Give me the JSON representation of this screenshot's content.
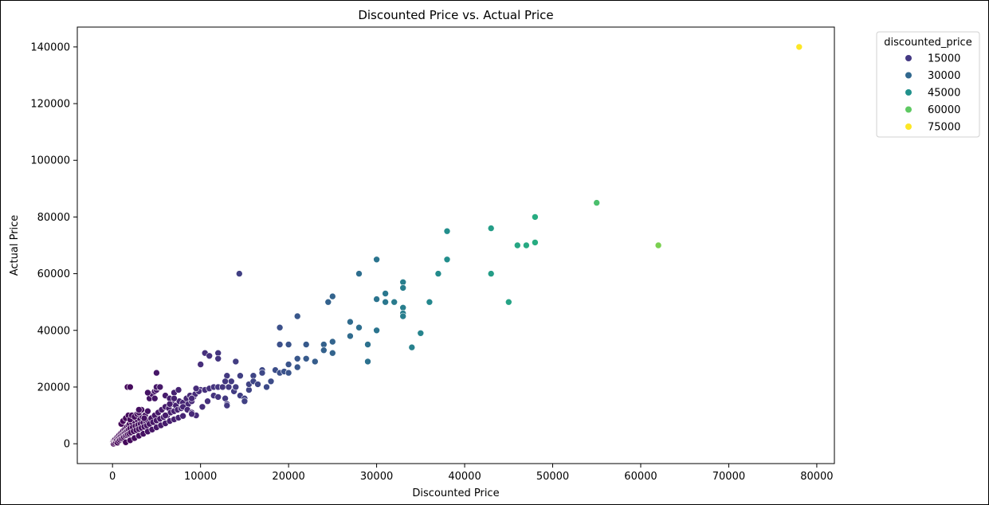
{
  "chart_data": {
    "type": "scatter",
    "title": "Discounted Price vs. Actual Price",
    "xlabel": "Discounted Price",
    "ylabel": "Actual Price",
    "xlim": [
      -4000,
      82000
    ],
    "ylim": [
      -7000,
      147000
    ],
    "x_ticks": [
      0,
      10000,
      20000,
      30000,
      40000,
      50000,
      60000,
      70000,
      80000
    ],
    "y_ticks": [
      0,
      20000,
      40000,
      60000,
      80000,
      100000,
      120000,
      140000
    ],
    "grid": false,
    "legend": {
      "title": "discounted_price",
      "placement": "outside-top-right",
      "entries": [
        {
          "label": "15000",
          "color": "#443983"
        },
        {
          "label": "30000",
          "color": "#31688e"
        },
        {
          "label": "45000",
          "color": "#21918c"
        },
        {
          "label": "60000",
          "color": "#5ec962"
        },
        {
          "label": "75000",
          "color": "#fde725"
        }
      ]
    },
    "colormap": "viridis",
    "color_range": [
      40,
      78000
    ],
    "points": [
      [
        40,
        500
      ],
      [
        80,
        200
      ],
      [
        120,
        0
      ],
      [
        150,
        1000
      ],
      [
        200,
        700
      ],
      [
        250,
        300
      ],
      [
        300,
        1500
      ],
      [
        350,
        900
      ],
      [
        400,
        600
      ],
      [
        450,
        2000
      ],
      [
        500,
        1200
      ],
      [
        550,
        400
      ],
      [
        600,
        2500
      ],
      [
        650,
        1800
      ],
      [
        700,
        1000
      ],
      [
        750,
        3000
      ],
      [
        800,
        2200
      ],
      [
        850,
        1400
      ],
      [
        900,
        3500
      ],
      [
        950,
        2600
      ],
      [
        1000,
        1800
      ],
      [
        1050,
        4000
      ],
      [
        1100,
        3000
      ],
      [
        1150,
        2000
      ],
      [
        1200,
        4500
      ],
      [
        1250,
        3400
      ],
      [
        1300,
        2400
      ],
      [
        1350,
        5000
      ],
      [
        1400,
        3800
      ],
      [
        1450,
        2800
      ],
      [
        1500,
        5500
      ],
      [
        1550,
        4200
      ],
      [
        1600,
        3000
      ],
      [
        1650,
        6000
      ],
      [
        1700,
        4600
      ],
      [
        1750,
        3300
      ],
      [
        1800,
        6500
      ],
      [
        1850,
        5000
      ],
      [
        1900,
        3600
      ],
      [
        1950,
        7000
      ],
      [
        2000,
        5400
      ],
      [
        2100,
        4000
      ],
      [
        2200,
        7500
      ],
      [
        2300,
        5800
      ],
      [
        2400,
        4400
      ],
      [
        2500,
        8000
      ],
      [
        2600,
        6200
      ],
      [
        2700,
        4800
      ],
      [
        2800,
        8500
      ],
      [
        2900,
        6600
      ],
      [
        3000,
        5200
      ],
      [
        3100,
        9000
      ],
      [
        3200,
        7000
      ],
      [
        3300,
        5600
      ],
      [
        3400,
        9500
      ],
      [
        3500,
        7400
      ],
      [
        3600,
        6000
      ],
      [
        3700,
        10000
      ],
      [
        3800,
        7800
      ],
      [
        3900,
        6400
      ],
      [
        4000,
        8200
      ],
      [
        4200,
        7000
      ],
      [
        4400,
        9000
      ],
      [
        4600,
        7600
      ],
      [
        4800,
        10000
      ],
      [
        5000,
        8200
      ],
      [
        5200,
        11000
      ],
      [
        5400,
        8800
      ],
      [
        5600,
        12000
      ],
      [
        5800,
        9400
      ],
      [
        6000,
        13000
      ],
      [
        6200,
        10000
      ],
      [
        6400,
        12500
      ],
      [
        6600,
        11000
      ],
      [
        6800,
        14000
      ],
      [
        7000,
        11500
      ],
      [
        7200,
        13500
      ],
      [
        7400,
        12000
      ],
      [
        7600,
        15000
      ],
      [
        7800,
        12500
      ],
      [
        8000,
        14500
      ],
      [
        8200,
        13000
      ],
      [
        8400,
        16000
      ],
      [
        8600,
        14000
      ],
      [
        8800,
        17000
      ],
      [
        9000,
        15000
      ],
      [
        9200,
        16500
      ],
      [
        9400,
        17500
      ],
      [
        1000,
        7000
      ],
      [
        1200,
        8000
      ],
      [
        1500,
        9000
      ],
      [
        1800,
        10000
      ],
      [
        2000,
        8500
      ],
      [
        2200,
        10000
      ],
      [
        2500,
        9500
      ],
      [
        2800,
        10500
      ],
      [
        3000,
        11000
      ],
      [
        3300,
        12000
      ],
      [
        3600,
        9000
      ],
      [
        4000,
        11500
      ],
      [
        4200,
        16000
      ],
      [
        4500,
        17500
      ],
      [
        4800,
        18500
      ],
      [
        5000,
        19000
      ],
      [
        5200,
        20000
      ],
      [
        6000,
        17000
      ],
      [
        6500,
        16000
      ],
      [
        7000,
        18000
      ],
      [
        7500,
        19000
      ],
      [
        8000,
        13000
      ],
      [
        8500,
        12000
      ],
      [
        9000,
        11000
      ],
      [
        9500,
        10000
      ],
      [
        1500,
        500
      ],
      [
        2000,
        1200
      ],
      [
        2500,
        2000
      ],
      [
        3000,
        2800
      ],
      [
        3500,
        3500
      ],
      [
        4000,
        4300
      ],
      [
        4500,
        5000
      ],
      [
        5000,
        5800
      ],
      [
        5500,
        6500
      ],
      [
        6000,
        7200
      ],
      [
        6500,
        8000
      ],
      [
        7000,
        8600
      ],
      [
        7500,
        9200
      ],
      [
        8000,
        9800
      ],
      [
        9000,
        10500
      ],
      [
        1700,
        20000
      ],
      [
        3000,
        12000
      ],
      [
        4000,
        18000
      ],
      [
        5000,
        25000
      ],
      [
        5000,
        20000
      ],
      [
        5400,
        20000
      ],
      [
        4800,
        16000
      ],
      [
        6000,
        10000
      ],
      [
        6500,
        14000
      ],
      [
        7000,
        16000
      ],
      [
        2000,
        20000
      ],
      [
        10000,
        28000
      ],
      [
        10500,
        32000
      ],
      [
        11000,
        31000
      ],
      [
        12000,
        32000
      ],
      [
        12000,
        30000
      ],
      [
        10000,
        19000
      ],
      [
        10500,
        19000
      ],
      [
        11000,
        19500
      ],
      [
        11500,
        20000
      ],
      [
        12000,
        20000
      ],
      [
        12500,
        20000
      ],
      [
        9800,
        18500
      ],
      [
        9500,
        19500
      ],
      [
        9000,
        16000
      ],
      [
        10200,
        13000
      ],
      [
        10800,
        15000
      ],
      [
        11500,
        17000
      ],
      [
        12000,
        16500
      ],
      [
        12800,
        16000
      ],
      [
        13000,
        24000
      ],
      [
        13200,
        20000
      ],
      [
        13500,
        22000
      ],
      [
        13800,
        18500
      ],
      [
        14000,
        20000
      ],
      [
        14000,
        29000
      ],
      [
        14400,
        60000
      ],
      [
        14500,
        24000
      ],
      [
        14500,
        17000
      ],
      [
        15000,
        16000
      ],
      [
        15000,
        15000
      ],
      [
        13000,
        14000
      ],
      [
        12800,
        22000
      ],
      [
        13000,
        13500
      ],
      [
        15500,
        19000
      ],
      [
        15500,
        21000
      ],
      [
        16000,
        24000
      ],
      [
        16000,
        22000
      ],
      [
        16500,
        21000
      ],
      [
        17000,
        26000
      ],
      [
        17000,
        25000
      ],
      [
        17500,
        20000
      ],
      [
        18000,
        22000
      ],
      [
        18500,
        26000
      ],
      [
        19000,
        41000
      ],
      [
        19000,
        35000
      ],
      [
        19000,
        25000
      ],
      [
        19500,
        25500
      ],
      [
        20000,
        35000
      ],
      [
        20000,
        28000
      ],
      [
        20000,
        25000
      ],
      [
        21000,
        45000
      ],
      [
        21000,
        30000
      ],
      [
        21000,
        27000
      ],
      [
        22000,
        35000
      ],
      [
        22000,
        30000
      ],
      [
        23000,
        29000
      ],
      [
        24000,
        35000
      ],
      [
        24000,
        33000
      ],
      [
        24500,
        50000
      ],
      [
        25000,
        52000
      ],
      [
        25000,
        36000
      ],
      [
        25000,
        32000
      ],
      [
        27000,
        43000
      ],
      [
        27000,
        38000
      ],
      [
        28000,
        60000
      ],
      [
        28000,
        41000
      ],
      [
        29000,
        35000
      ],
      [
        29000,
        29000
      ],
      [
        30000,
        65000
      ],
      [
        30000,
        51000
      ],
      [
        30000,
        40000
      ],
      [
        31000,
        53000
      ],
      [
        31000,
        50000
      ],
      [
        32000,
        50000
      ],
      [
        33000,
        57000
      ],
      [
        33000,
        55000
      ],
      [
        33000,
        48000
      ],
      [
        33000,
        46000
      ],
      [
        33000,
        45000
      ],
      [
        34000,
        34000
      ],
      [
        35000,
        39000
      ],
      [
        36000,
        50000
      ],
      [
        37000,
        60000
      ],
      [
        38000,
        75000
      ],
      [
        38000,
        65000
      ],
      [
        43000,
        76000
      ],
      [
        43000,
        60000
      ],
      [
        45000,
        50000
      ],
      [
        46000,
        70000
      ],
      [
        47000,
        70000
      ],
      [
        48000,
        80000
      ],
      [
        48000,
        71000
      ],
      [
        55000,
        85000
      ],
      [
        62000,
        70000
      ],
      [
        78000,
        140000
      ]
    ]
  }
}
